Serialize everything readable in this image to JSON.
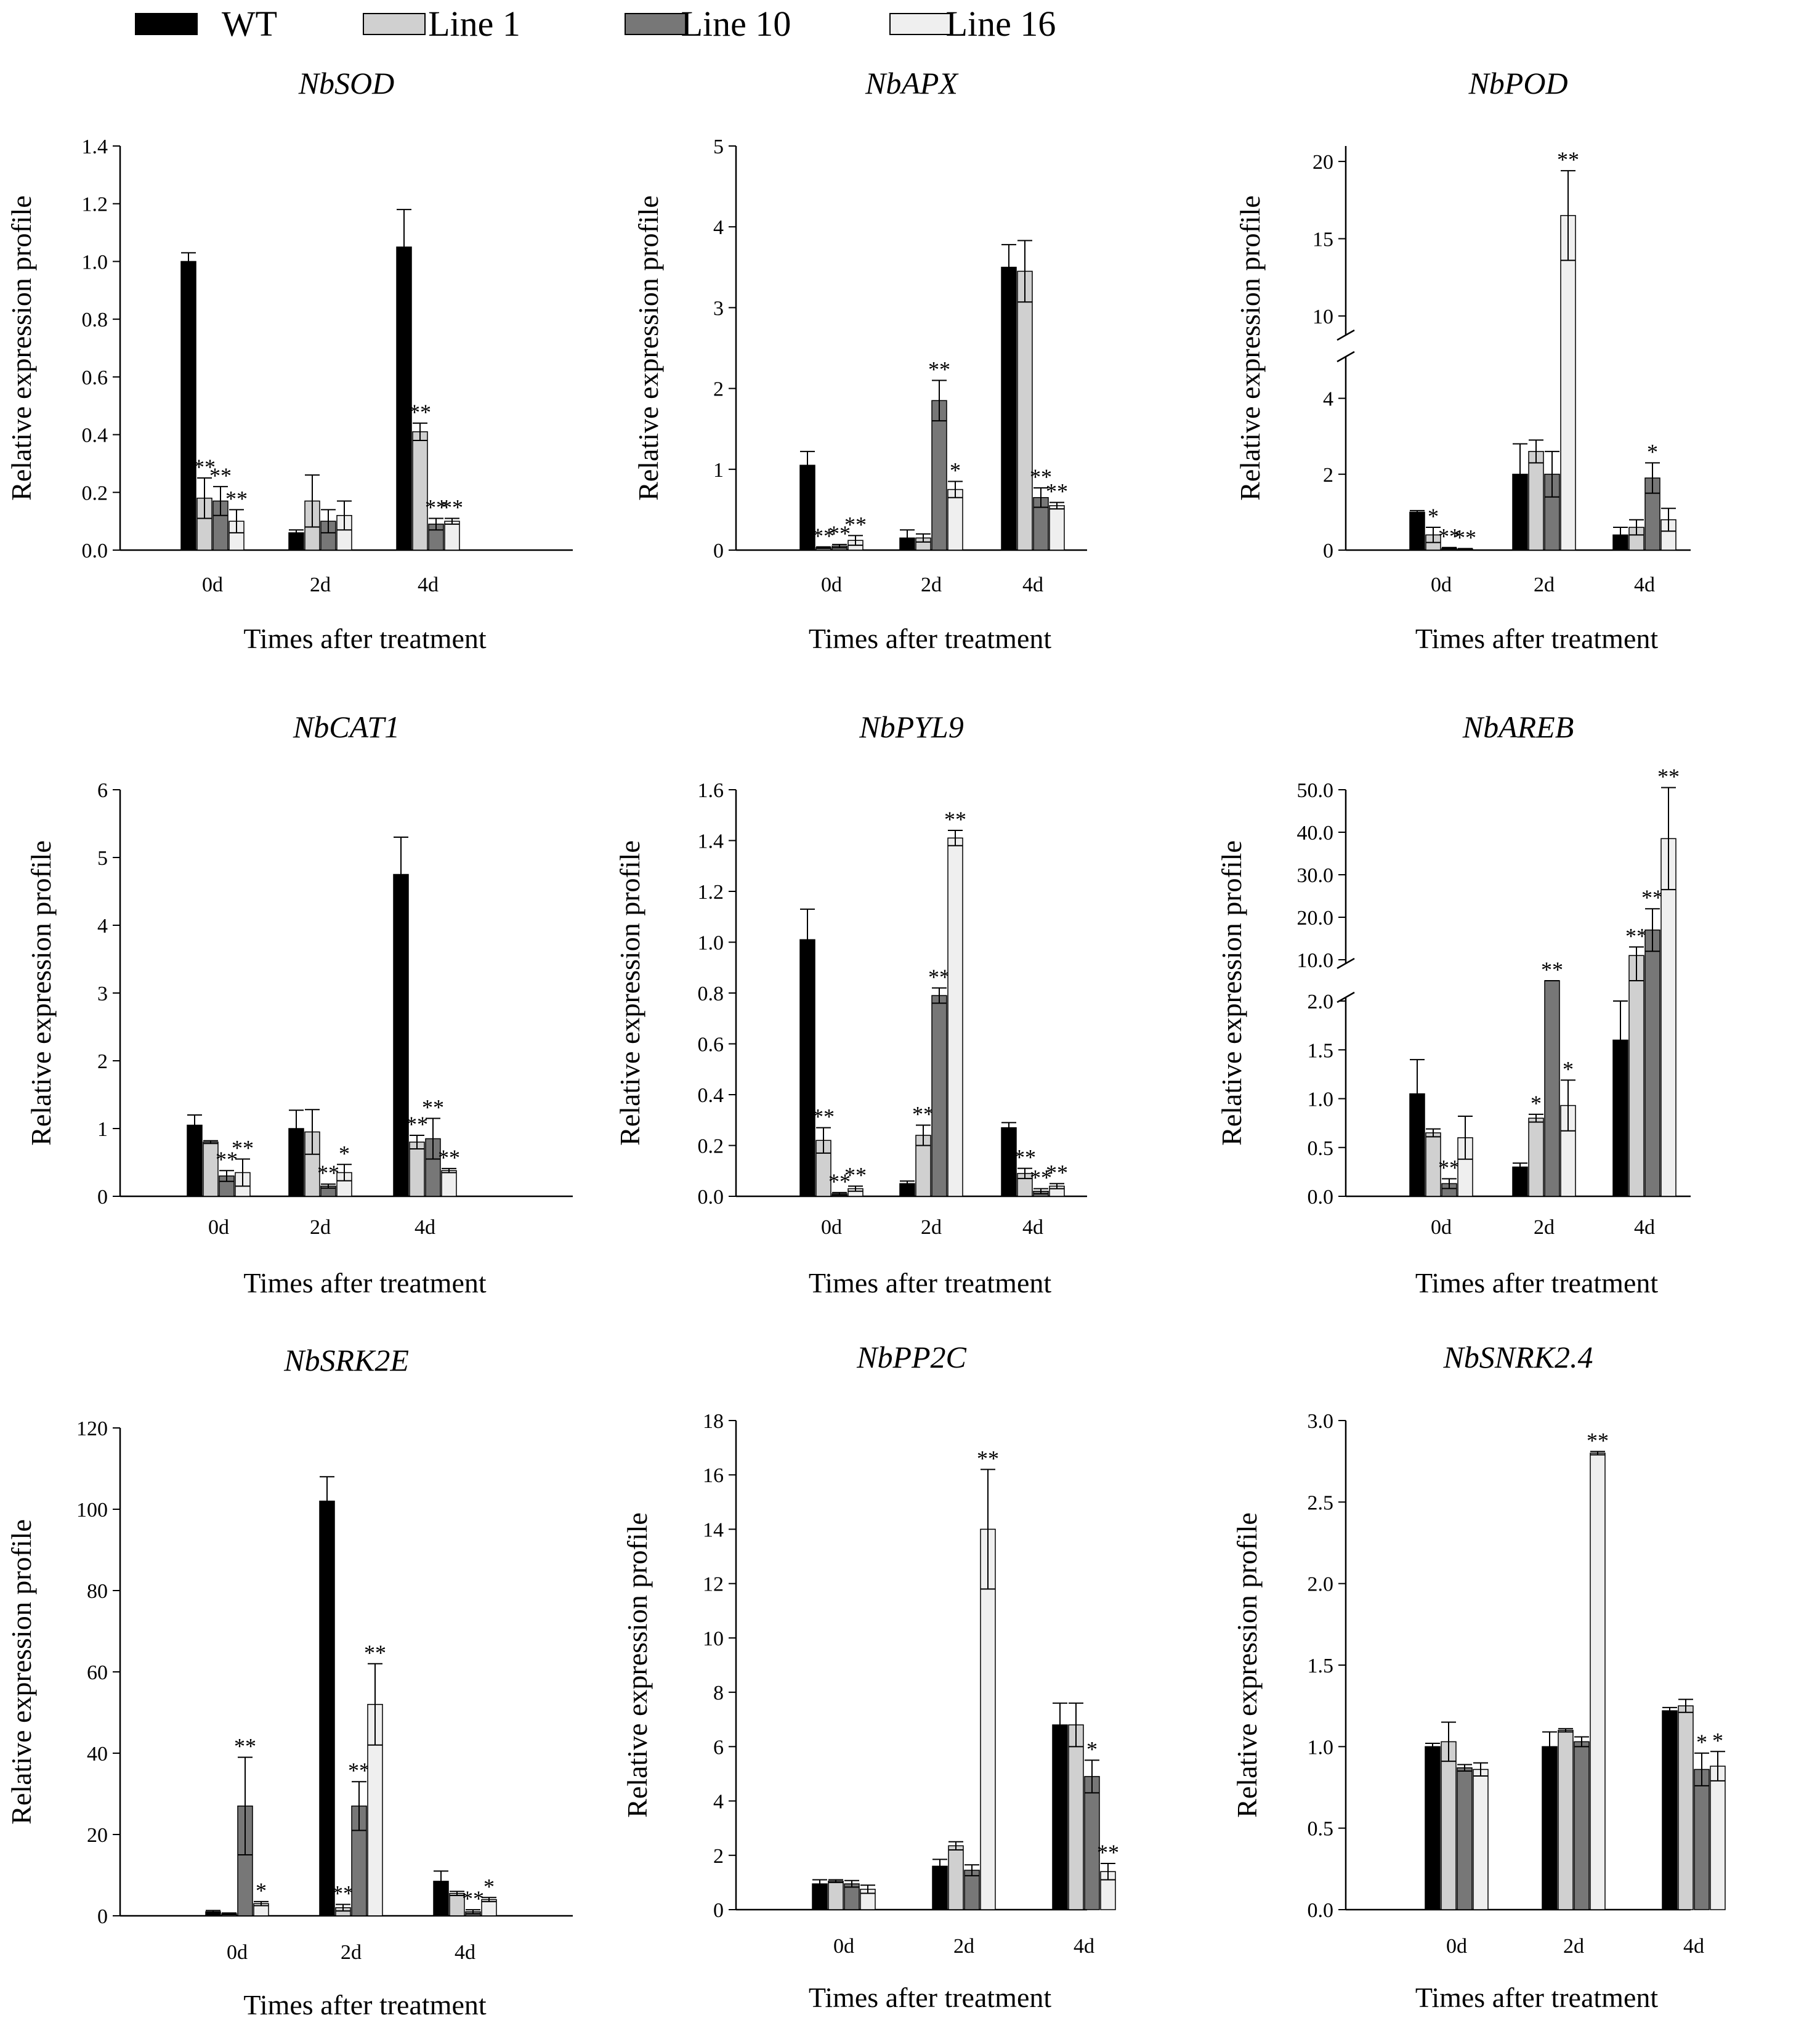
{
  "legend": {
    "series": [
      {
        "name": "WT",
        "color": "#000000"
      },
      {
        "name": "Line 1",
        "color": "#d0d0d0"
      },
      {
        "name": "Line 10",
        "color": "#777777"
      },
      {
        "name": "Line 16",
        "color": "#efefef"
      }
    ]
  },
  "chart_data": [
    {
      "type": "bar",
      "title": "NbSOD",
      "xlabel": "Times after treatment",
      "ylabel": "Relative expression profile",
      "categories": [
        "0d",
        "2d",
        "4d"
      ],
      "ylim": [
        0,
        1.4
      ],
      "yticks": [
        "0.0",
        "0.2",
        "0.4",
        "0.6",
        "0.8",
        "1.0",
        "1.2",
        "1.4"
      ],
      "series": [
        {
          "name": "WT",
          "values": [
            1.0,
            0.06,
            1.05
          ],
          "errors": [
            0.03,
            0.01,
            0.13
          ],
          "sig": [
            "",
            "",
            ""
          ]
        },
        {
          "name": "Line 1",
          "values": [
            0.18,
            0.17,
            0.41
          ],
          "errors": [
            0.07,
            0.09,
            0.03
          ],
          "sig": [
            "**",
            "",
            "**"
          ]
        },
        {
          "name": "Line 10",
          "values": [
            0.17,
            0.1,
            0.09
          ],
          "errors": [
            0.05,
            0.04,
            0.02
          ],
          "sig": [
            "**",
            "",
            "**"
          ]
        },
        {
          "name": "Line 16",
          "values": [
            0.1,
            0.12,
            0.1
          ],
          "errors": [
            0.04,
            0.05,
            0.01
          ],
          "sig": [
            "**",
            "",
            "**"
          ]
        }
      ]
    },
    {
      "type": "bar",
      "title": "NbAPX",
      "xlabel": "Times after treatment",
      "ylabel": "Relative expression profile",
      "categories": [
        "0d",
        "2d",
        "4d"
      ],
      "ylim": [
        0,
        5
      ],
      "yticks": [
        "0",
        "1",
        "2",
        "3",
        "4",
        "5"
      ],
      "series": [
        {
          "name": "WT",
          "values": [
            1.05,
            0.15,
            3.5
          ],
          "errors": [
            0.17,
            0.1,
            0.28
          ],
          "sig": [
            "",
            "",
            ""
          ]
        },
        {
          "name": "Line 1",
          "values": [
            0.03,
            0.15,
            3.45
          ],
          "errors": [
            0.01,
            0.05,
            0.38
          ],
          "sig": [
            "**",
            "",
            ""
          ]
        },
        {
          "name": "Line 10",
          "values": [
            0.05,
            1.85,
            0.65
          ],
          "errors": [
            0.02,
            0.25,
            0.12
          ],
          "sig": [
            "**",
            "**",
            "**"
          ]
        },
        {
          "name": "Line 16",
          "values": [
            0.12,
            0.75,
            0.55
          ],
          "errors": [
            0.06,
            0.1,
            0.04
          ],
          "sig": [
            "**",
            "*",
            "**"
          ]
        }
      ]
    },
    {
      "type": "bar",
      "title": "NbPOD",
      "xlabel": "Times after treatment",
      "ylabel": "Relative expression profile",
      "categories": [
        "0d",
        "2d",
        "4d"
      ],
      "ylim": [
        0,
        21
      ],
      "axis_break": {
        "lower": [
          0,
          5
        ],
        "upper": [
          9,
          21
        ]
      },
      "yticks": [
        "0",
        "2",
        "4",
        "10",
        "15",
        "20"
      ],
      "series": [
        {
          "name": "WT",
          "values": [
            1.0,
            2.0,
            0.4
          ],
          "errors": [
            0.04,
            0.8,
            0.2
          ],
          "sig": [
            "",
            "",
            ""
          ]
        },
        {
          "name": "Line 1",
          "values": [
            0.4,
            2.6,
            0.6
          ],
          "errors": [
            0.2,
            0.3,
            0.2
          ],
          "sig": [
            "*",
            "",
            ""
          ]
        },
        {
          "name": "Line 10",
          "values": [
            0.05,
            2.0,
            1.9
          ],
          "errors": [
            0.02,
            0.6,
            0.4
          ],
          "sig": [
            "**",
            "",
            "*"
          ]
        },
        {
          "name": "Line 16",
          "values": [
            0.03,
            16.5,
            0.8
          ],
          "errors": [
            0.01,
            2.9,
            0.3
          ],
          "sig": [
            "**",
            "**",
            ""
          ]
        }
      ]
    },
    {
      "type": "bar",
      "title": "NbCAT1",
      "xlabel": "Times after treatment",
      "ylabel": "Relative expression profile",
      "categories": [
        "0d",
        "2d",
        "4d"
      ],
      "ylim": [
        0,
        6
      ],
      "yticks": [
        "0",
        "1",
        "2",
        "3",
        "4",
        "5",
        "6"
      ],
      "series": [
        {
          "name": "WT",
          "values": [
            1.05,
            1.0,
            4.75
          ],
          "errors": [
            0.15,
            0.27,
            0.55
          ],
          "sig": [
            "",
            "",
            ""
          ]
        },
        {
          "name": "Line 1",
          "values": [
            0.8,
            0.95,
            0.8
          ],
          "errors": [
            0.02,
            0.33,
            0.1
          ],
          "sig": [
            "",
            "",
            "**"
          ]
        },
        {
          "name": "Line 10",
          "values": [
            0.3,
            0.15,
            0.85
          ],
          "errors": [
            0.08,
            0.03,
            0.3
          ],
          "sig": [
            "**",
            "**",
            "**"
          ]
        },
        {
          "name": "Line 16",
          "values": [
            0.35,
            0.35,
            0.38
          ],
          "errors": [
            0.2,
            0.12,
            0.03
          ],
          "sig": [
            "**",
            "*",
            "**"
          ]
        }
      ]
    },
    {
      "type": "bar",
      "title": "NbPYL9",
      "xlabel": "Times after treatment",
      "ylabel": "Relative expression profile",
      "categories": [
        "0d",
        "2d",
        "4d"
      ],
      "ylim": [
        0,
        1.6
      ],
      "yticks": [
        "0.0",
        "0.2",
        "0.4",
        "0.6",
        "0.8",
        "1.0",
        "1.2",
        "1.4",
        "1.6"
      ],
      "series": [
        {
          "name": "WT",
          "values": [
            1.01,
            0.05,
            0.27
          ],
          "errors": [
            0.12,
            0.01,
            0.02
          ],
          "sig": [
            "",
            "",
            ""
          ]
        },
        {
          "name": "Line 1",
          "values": [
            0.22,
            0.24,
            0.09
          ],
          "errors": [
            0.05,
            0.04,
            0.02
          ],
          "sig": [
            "**",
            "**",
            "**"
          ]
        },
        {
          "name": "Line 10",
          "values": [
            0.01,
            0.79,
            0.02
          ],
          "errors": [
            0.005,
            0.03,
            0.01
          ],
          "sig": [
            "**",
            "**",
            "**"
          ]
        },
        {
          "name": "Line 16",
          "values": [
            0.03,
            1.41,
            0.04
          ],
          "errors": [
            0.01,
            0.03,
            0.01
          ],
          "sig": [
            "**",
            "**",
            "**"
          ]
        }
      ]
    },
    {
      "type": "bar",
      "title": "NbAREB",
      "xlabel": "Times after treatment",
      "ylabel": "Relative expression profile",
      "categories": [
        "0d",
        "2d",
        "4d"
      ],
      "ylim": [
        0,
        50
      ],
      "axis_break": {
        "lower": [
          0,
          2
        ],
        "upper": [
          10,
          50
        ]
      },
      "yticks": [
        "0.0",
        "0.5",
        "1.0",
        "1.5",
        "2.0",
        "10.0",
        "20.0",
        "30.0",
        "40.0",
        "50.0"
      ],
      "series": [
        {
          "name": "WT",
          "values": [
            1.05,
            0.3,
            1.6
          ],
          "errors": [
            0.35,
            0.04,
            0.4
          ],
          "sig": [
            "",
            "",
            ""
          ]
        },
        {
          "name": "Line 1",
          "values": [
            0.65,
            0.8,
            11.0
          ],
          "errors": [
            0.04,
            0.04,
            2.0
          ],
          "sig": [
            "",
            "*",
            "**"
          ]
        },
        {
          "name": "Line 10",
          "values": [
            0.13,
            8.0,
            17.0
          ],
          "errors": [
            0.05,
            0.8,
            5.0
          ],
          "sig": [
            "**",
            "**",
            "**"
          ]
        },
        {
          "name": "Line 16",
          "values": [
            0.6,
            0.93,
            38.5
          ],
          "errors": [
            0.22,
            0.26,
            12.0
          ],
          "sig": [
            "",
            "*",
            "**"
          ]
        }
      ]
    },
    {
      "type": "bar",
      "title": "NbSRK2E",
      "xlabel": "Times after treatment",
      "ylabel": "Relative expression profile",
      "categories": [
        "0d",
        "2d",
        "4d"
      ],
      "ylim": [
        0,
        120
      ],
      "yticks": [
        "0",
        "20",
        "40",
        "60",
        "80",
        "100",
        "120"
      ],
      "series": [
        {
          "name": "WT",
          "values": [
            1.0,
            102.0,
            8.5
          ],
          "errors": [
            0.3,
            6.0,
            2.5
          ],
          "sig": [
            "",
            "",
            ""
          ]
        },
        {
          "name": "Line 1",
          "values": [
            0.5,
            2.0,
            5.5
          ],
          "errors": [
            0.2,
            0.8,
            0.5
          ],
          "sig": [
            "",
            "**",
            ""
          ]
        },
        {
          "name": "Line 10",
          "values": [
            27.0,
            27.0,
            1.0
          ],
          "errors": [
            12.0,
            6.0,
            0.5
          ],
          "sig": [
            "**",
            "**",
            "**"
          ]
        },
        {
          "name": "Line 16",
          "values": [
            3.0,
            52.0,
            4.0
          ],
          "errors": [
            0.5,
            10.0,
            0.5
          ],
          "sig": [
            "*",
            "**",
            "*"
          ]
        }
      ]
    },
    {
      "type": "bar",
      "title": "NbPP2C",
      "xlabel": "Times after treatment",
      "ylabel": "Relative expression profile",
      "categories": [
        "0d",
        "2d",
        "4d"
      ],
      "ylim": [
        0,
        18
      ],
      "yticks": [
        "0",
        "2",
        "4",
        "6",
        "8",
        "10",
        "12",
        "14",
        "16",
        "18"
      ],
      "series": [
        {
          "name": "WT",
          "values": [
            0.95,
            1.6,
            6.8
          ],
          "errors": [
            0.15,
            0.25,
            0.8
          ],
          "sig": [
            "",
            "",
            ""
          ]
        },
        {
          "name": "Line 1",
          "values": [
            1.05,
            2.35,
            6.8
          ],
          "errors": [
            0.05,
            0.15,
            0.8
          ],
          "sig": [
            "",
            "",
            ""
          ]
        },
        {
          "name": "Line 10",
          "values": [
            0.95,
            1.45,
            4.9
          ],
          "errors": [
            0.12,
            0.2,
            0.6
          ],
          "sig": [
            "",
            "",
            "*"
          ]
        },
        {
          "name": "Line 16",
          "values": [
            0.75,
            14.0,
            1.4
          ],
          "errors": [
            0.15,
            2.2,
            0.3
          ],
          "sig": [
            "",
            "**",
            "**"
          ]
        }
      ]
    },
    {
      "type": "bar",
      "title": "NbSNRK2.4",
      "xlabel": "Times after treatment",
      "ylabel": "Relative expression profile",
      "categories": [
        "0d",
        "2d",
        "4d"
      ],
      "ylim": [
        0,
        3.0
      ],
      "yticks": [
        "0.0",
        "0.5",
        "1.0",
        "1.5",
        "2.0",
        "2.5",
        "3.0"
      ],
      "series": [
        {
          "name": "WT",
          "values": [
            1.0,
            1.0,
            1.22
          ],
          "errors": [
            0.02,
            0.09,
            0.02
          ],
          "sig": [
            "",
            "",
            ""
          ]
        },
        {
          "name": "Line 1",
          "values": [
            1.03,
            1.1,
            1.25
          ],
          "errors": [
            0.12,
            0.01,
            0.04
          ],
          "sig": [
            "",
            "",
            ""
          ]
        },
        {
          "name": "Line 10",
          "values": [
            0.87,
            1.03,
            0.86
          ],
          "errors": [
            0.02,
            0.03,
            0.1
          ],
          "sig": [
            "",
            "",
            "*"
          ]
        },
        {
          "name": "Line 16",
          "values": [
            0.86,
            2.8,
            0.88
          ],
          "errors": [
            0.04,
            0.01,
            0.09
          ],
          "sig": [
            "",
            "**",
            "*"
          ]
        }
      ]
    }
  ]
}
